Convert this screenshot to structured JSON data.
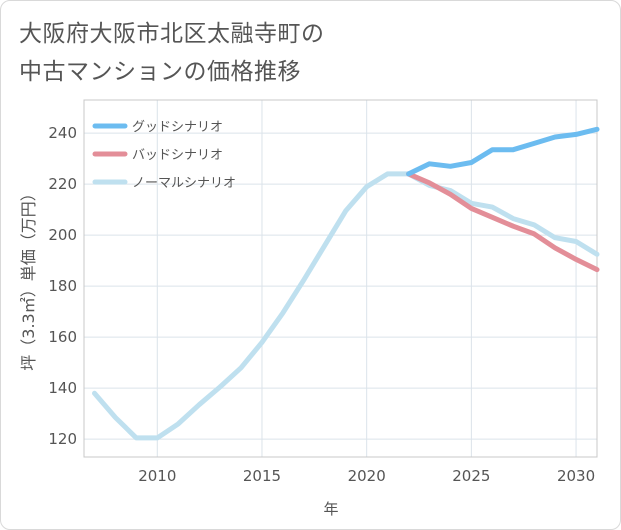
{
  "chart_data": {
    "type": "line",
    "title_lines": [
      "大阪府大阪市北区太融寺町の",
      "中古マンションの価格推移"
    ],
    "xlabel": "年",
    "ylabel": "坪（3.3㎡）単価（万円）",
    "xlim": [
      2006.5,
      2031
    ],
    "ylim": [
      113,
      253
    ],
    "xticks": [
      2010,
      2015,
      2020,
      2025,
      2030
    ],
    "yticks": [
      120,
      140,
      160,
      180,
      200,
      220,
      240
    ],
    "grid": true,
    "legend_position": "top-left",
    "series": [
      {
        "name": "グッドシナリオ",
        "color": "#6cbcf0",
        "x": [
          2022,
          2023,
          2024,
          2025,
          2026,
          2027,
          2028,
          2029,
          2030,
          2031
        ],
        "values": [
          224,
          228,
          227,
          228.5,
          233.5,
          233.5,
          236,
          238.5,
          239.5,
          241.5
        ]
      },
      {
        "name": "バッドシナリオ",
        "color": "#e38e98",
        "x": [
          2022,
          2023,
          2024,
          2025,
          2026,
          2027,
          2028,
          2029,
          2030,
          2031
        ],
        "values": [
          224,
          220.5,
          216,
          210.5,
          207,
          203.5,
          200.5,
          195,
          190.5,
          186.5
        ]
      },
      {
        "name": "ノーマルシナリオ",
        "color": "#bfe0ef",
        "x": [
          2007,
          2008,
          2009,
          2010,
          2011,
          2012,
          2013,
          2014,
          2015,
          2016,
          2017,
          2018,
          2019,
          2020,
          2021,
          2022,
          2023,
          2024,
          2025,
          2026,
          2027,
          2028,
          2029,
          2030,
          2031
        ],
        "values": [
          138,
          128.5,
          120.5,
          120.5,
          126,
          133.5,
          140.5,
          148,
          158,
          169.5,
          182.5,
          196,
          209.5,
          219,
          224,
          224,
          219.5,
          217.5,
          212.5,
          211,
          206.5,
          204,
          199,
          197.5,
          192.5
        ]
      }
    ]
  }
}
